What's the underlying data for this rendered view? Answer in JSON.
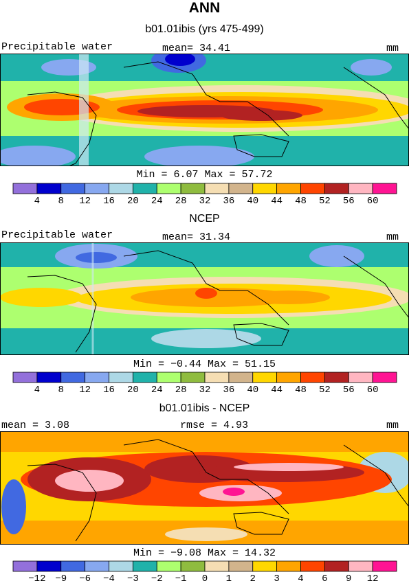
{
  "title": "ANN",
  "panels": [
    {
      "id": "model",
      "subtitle": "b01.01ibis (yrs 475-499)",
      "left_label": "Precipitable water",
      "center_label": "mean=  34.41",
      "right_label": "mm",
      "minmax": "Min =    6.07 Max =   57.72",
      "colorbar": {
        "labels": [
          "4",
          "8",
          "12",
          "16",
          "20",
          "24",
          "28",
          "32",
          "36",
          "40",
          "44",
          "48",
          "52",
          "56",
          "60"
        ],
        "colors": [
          "#9370db",
          "#0000cd",
          "#4169e1",
          "#87a8f0",
          "#add8e6",
          "#20b2aa",
          "#adff6f",
          "#8fbc3f",
          "#f5deb3",
          "#d2b48c",
          "#ffd700",
          "#ffa500",
          "#ff4500",
          "#b22222",
          "#ffb6c1",
          "#ff1493"
        ]
      }
    },
    {
      "id": "ncep",
      "subtitle": "NCEP",
      "left_label": "Precipitable water",
      "center_label": "mean=  31.34",
      "right_label": "mm",
      "minmax": "Min =   −0.44 Max =   51.15",
      "colorbar": {
        "labels": [
          "4",
          "8",
          "12",
          "16",
          "20",
          "24",
          "28",
          "32",
          "36",
          "40",
          "44",
          "48",
          "52",
          "56",
          "60"
        ],
        "colors": [
          "#9370db",
          "#0000cd",
          "#4169e1",
          "#87a8f0",
          "#add8e6",
          "#20b2aa",
          "#adff6f",
          "#8fbc3f",
          "#f5deb3",
          "#d2b48c",
          "#ffd700",
          "#ffa500",
          "#ff4500",
          "#b22222",
          "#ffb6c1",
          "#ff1493"
        ]
      }
    },
    {
      "id": "diff",
      "subtitle": "b01.01ibis - NCEP",
      "left_label": "mean =     3.08",
      "center_label": "rmse =     4.93",
      "right_label": "mm",
      "minmax": "Min =   −9.08 Max =   14.32",
      "colorbar": {
        "labels": [
          "−12",
          "−9",
          "−6",
          "−4",
          "−3",
          "−2",
          "−1",
          "0",
          "1",
          "2",
          "3",
          "4",
          "6",
          "9",
          "12"
        ],
        "colors": [
          "#9370db",
          "#0000cd",
          "#4169e1",
          "#87a8f0",
          "#add8e6",
          "#20b2aa",
          "#adff6f",
          "#8fbc3f",
          "#f5deb3",
          "#d2b48c",
          "#ffd700",
          "#ffa500",
          "#ff4500",
          "#b22222",
          "#ffb6c1",
          "#ff1493"
        ]
      }
    }
  ]
}
